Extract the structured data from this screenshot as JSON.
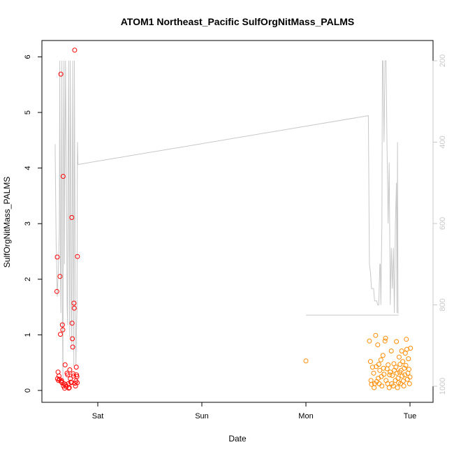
{
  "chart_data": {
    "type": "scatter",
    "title": "ATOM1 Northeast_Pacific SulfOrgNitMass_PALMS",
    "xlabel": "Date",
    "ylabel": "SulfOrgNitMass_PALMS",
    "x_units": "days since Fri 00:00",
    "xlim": [
      0.56,
      4.1
    ],
    "ylim": [
      0,
      6.35
    ],
    "x_ticks": [
      {
        "value": 1,
        "label": "Sat"
      },
      {
        "value": 2,
        "label": "Sun"
      },
      {
        "value": 3,
        "label": "Mon"
      },
      {
        "value": 4,
        "label": "Tue"
      }
    ],
    "y_ticks": [
      0,
      1,
      2,
      3,
      4,
      5,
      6
    ],
    "y2_ticks": [
      200,
      400,
      600,
      800,
      1000
    ],
    "y2_lim": [
      1010,
      190
    ],
    "y2_reversed": true,
    "grid": false,
    "series": [
      {
        "color": "#ff0000",
        "points": [
          [
            0.607,
            1.78
          ],
          [
            0.611,
            2.4
          ],
          [
            0.613,
            0.21
          ],
          [
            0.618,
            0.33
          ],
          [
            0.622,
            0.18
          ],
          [
            0.627,
            0.26
          ],
          [
            0.632,
            0.2
          ],
          [
            0.637,
            2.05
          ],
          [
            0.641,
            1.01
          ],
          [
            0.645,
            5.69
          ],
          [
            0.648,
            0.16
          ],
          [
            0.652,
            0.18
          ],
          [
            0.656,
            0.14
          ],
          [
            0.66,
            1.18
          ],
          [
            0.664,
            1.09
          ],
          [
            0.667,
            3.85
          ],
          [
            0.671,
            0.08
          ],
          [
            0.676,
            0.12
          ],
          [
            0.681,
            0.04
          ],
          [
            0.686,
            0.46
          ],
          [
            0.692,
            0.1
          ],
          [
            0.698,
            0.07
          ],
          [
            0.705,
            0.31
          ],
          [
            0.711,
            0.28
          ],
          [
            0.716,
            0.12
          ],
          [
            0.721,
            0.04
          ],
          [
            0.726,
            0.05
          ],
          [
            0.731,
            0.37
          ],
          [
            0.736,
            0.21
          ],
          [
            0.741,
            0.15
          ],
          [
            0.746,
            0.14
          ],
          [
            0.75,
            3.11
          ],
          [
            0.753,
            1.21
          ],
          [
            0.756,
            0.93
          ],
          [
            0.759,
            0.78
          ],
          [
            0.763,
            0.3
          ],
          [
            0.767,
            0.26
          ],
          [
            0.771,
            1.57
          ],
          [
            0.774,
            1.48
          ],
          [
            0.778,
            6.12
          ],
          [
            0.782,
            0.13
          ],
          [
            0.786,
            0.08
          ],
          [
            0.79,
            0.17
          ],
          [
            0.793,
            0.42
          ],
          [
            0.796,
            0.28
          ],
          [
            0.799,
            0.25
          ],
          [
            0.802,
            0.14
          ],
          [
            0.805,
            2.41
          ]
        ]
      },
      {
        "color": "#ff8c00",
        "points": [
          [
            3.0,
            0.53
          ],
          [
            3.61,
            0.89
          ],
          [
            3.62,
            0.52
          ],
          [
            3.625,
            0.18
          ],
          [
            3.63,
            0.11
          ],
          [
            3.64,
            0.42
          ],
          [
            3.65,
            0.31
          ],
          [
            3.655,
            0.05
          ],
          [
            3.66,
            0.12
          ],
          [
            3.67,
            0.99
          ],
          [
            3.675,
            0.43
          ],
          [
            3.68,
            0.16
          ],
          [
            3.69,
            0.82
          ],
          [
            3.695,
            0.22
          ],
          [
            3.7,
            0.47
          ],
          [
            3.705,
            0.12
          ],
          [
            3.71,
            0.36
          ],
          [
            3.72,
            0.55
          ],
          [
            3.725,
            0.25
          ],
          [
            3.73,
            0.08
          ],
          [
            3.74,
            0.63
          ],
          [
            3.745,
            0.4
          ],
          [
            3.75,
            0.29
          ],
          [
            3.76,
            0.89
          ],
          [
            3.765,
            0.94
          ],
          [
            3.77,
            0.18
          ],
          [
            3.78,
            0.39
          ],
          [
            3.785,
            0.12
          ],
          [
            3.79,
            0.46
          ],
          [
            3.8,
            0.05
          ],
          [
            3.805,
            0.28
          ],
          [
            3.81,
            0.33
          ],
          [
            3.82,
            0.71
          ],
          [
            3.825,
            0.12
          ],
          [
            3.83,
            0.27
          ],
          [
            3.84,
            0.08
          ],
          [
            3.845,
            0.48
          ],
          [
            3.85,
            0.36
          ],
          [
            3.86,
            0.18
          ],
          [
            3.865,
            0.42
          ],
          [
            3.87,
            0.88
          ],
          [
            3.875,
            0.31
          ],
          [
            3.88,
            0.05
          ],
          [
            3.885,
            0.22
          ],
          [
            3.89,
            0.14
          ],
          [
            3.895,
            0.6
          ],
          [
            3.9,
            0.33
          ],
          [
            3.905,
            0.47
          ],
          [
            3.91,
            0.12
          ],
          [
            3.915,
            0.36
          ],
          [
            3.92,
            0.71
          ],
          [
            3.925,
            0.26
          ],
          [
            3.93,
            0.52
          ],
          [
            3.935,
            0.17
          ],
          [
            3.94,
            0.08
          ],
          [
            3.945,
            0.4
          ],
          [
            3.95,
            0.28
          ],
          [
            3.955,
            0.67
          ],
          [
            3.96,
            0.45
          ],
          [
            3.965,
            0.92
          ],
          [
            3.97,
            0.74
          ],
          [
            3.975,
            0.2
          ],
          [
            3.98,
            0.31
          ],
          [
            3.985,
            0.57
          ],
          [
            3.99,
            0.38
          ],
          [
            3.995,
            0.12
          ],
          [
            4.0,
            0.24
          ],
          [
            4.005,
            0.76
          ]
        ]
      }
    ],
    "line_series": {
      "color": "#c8c8c8",
      "axis": "right",
      "points": [
        [
          0.59,
          405
        ],
        [
          0.6,
          650
        ],
        [
          0.605,
          700
        ],
        [
          0.61,
          780
        ],
        [
          0.62,
          720
        ],
        [
          0.63,
          620
        ],
        [
          0.635,
          200
        ],
        [
          0.64,
          700
        ],
        [
          0.645,
          820
        ],
        [
          0.65,
          500
        ],
        [
          0.655,
          200
        ],
        [
          0.66,
          820
        ],
        [
          0.665,
          1000
        ],
        [
          0.67,
          400
        ],
        [
          0.675,
          200
        ],
        [
          0.68,
          700
        ],
        [
          0.69,
          200
        ],
        [
          0.7,
          500
        ],
        [
          0.705,
          800
        ],
        [
          0.71,
          850
        ],
        [
          0.715,
          450
        ],
        [
          0.72,
          200
        ],
        [
          0.725,
          650
        ],
        [
          0.73,
          880
        ],
        [
          0.735,
          200
        ],
        [
          0.74,
          400
        ],
        [
          0.745,
          800
        ],
        [
          0.75,
          900
        ],
        [
          0.755,
          500
        ],
        [
          0.76,
          200
        ],
        [
          0.765,
          700
        ],
        [
          0.77,
          950
        ],
        [
          0.775,
          200
        ],
        [
          0.78,
          500
        ],
        [
          0.785,
          800
        ],
        [
          0.79,
          950
        ],
        [
          0.795,
          850
        ],
        [
          0.8,
          820
        ],
        [
          0.805,
          400
        ],
        [
          0.81,
          455
        ],
        [
          3.6,
          335
        ],
        [
          3.61,
          700
        ],
        [
          3.62,
          720
        ],
        [
          3.63,
          760
        ],
        [
          3.65,
          760
        ],
        [
          3.66,
          790
        ],
        [
          3.68,
          790
        ],
        [
          3.69,
          800
        ],
        [
          3.7,
          800
        ],
        [
          3.71,
          700
        ],
        [
          3.715,
          700
        ],
        [
          3.72,
          800
        ],
        [
          3.725,
          700
        ],
        [
          3.73,
          600
        ],
        [
          3.735,
          200
        ],
        [
          3.74,
          200
        ],
        [
          3.75,
          400
        ],
        [
          3.76,
          200
        ],
        [
          3.77,
          200
        ],
        [
          3.78,
          420
        ],
        [
          3.79,
          600
        ],
        [
          3.8,
          450
        ],
        [
          3.81,
          800
        ],
        [
          3.82,
          660
        ],
        [
          3.83,
          760
        ],
        [
          3.84,
          660
        ],
        [
          3.85,
          820
        ],
        [
          3.86,
          600
        ],
        [
          3.87,
          500
        ],
        [
          3.875,
          820
        ],
        [
          3.88,
          400
        ],
        [
          3.885,
          820
        ],
        [
          3.89,
          820
        ]
      ],
      "extra_segment": [
        [
          3.0,
          825
        ],
        [
          3.89,
          825
        ]
      ]
    }
  }
}
